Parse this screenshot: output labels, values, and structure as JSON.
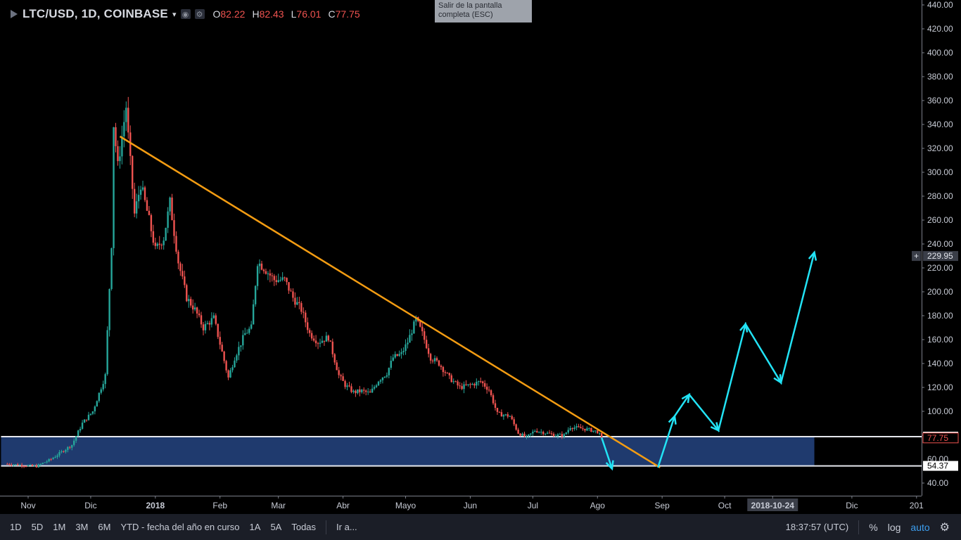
{
  "header": {
    "symbol": "LTC/USD, 1D, COINBASE",
    "ohlc": [
      {
        "key": "O",
        "value": "82.22"
      },
      {
        "key": "H",
        "value": "82.43"
      },
      {
        "key": "L",
        "value": "76.01"
      },
      {
        "key": "C",
        "value": "77.75"
      }
    ]
  },
  "tooltip": {
    "line1": "Salir de la pantalla",
    "line2": "completa (ESC)"
  },
  "bottom_bar": {
    "ranges": [
      "1D",
      "5D",
      "1M",
      "3M",
      "6M",
      "YTD - fecha del año en curso",
      "1A",
      "5A",
      "Todas",
      "Ir a..."
    ],
    "clock": "18:37:57 (UTC)",
    "percent_label": "%",
    "log_label": "log",
    "auto_label": "auto"
  },
  "colors": {
    "background": "#000000",
    "candle_up": "#26a69a",
    "candle_down": "#ef5350",
    "trendline": "#f39c12",
    "zone_fill": "#1f3a6e",
    "arrow": "#22e3f5"
  },
  "chart_data": {
    "type": "candlestick",
    "symbol": "LTC/USD",
    "interval": "1D",
    "exchange": "COINBASE",
    "ylim": [
      33,
      445
    ],
    "y_ticks": [
      40,
      60,
      80,
      100,
      120,
      140,
      160,
      180,
      200,
      220,
      240,
      260,
      280,
      300,
      320,
      340,
      360,
      380,
      400,
      420,
      440
    ],
    "x_ticks": [
      "Nov",
      "Dic",
      "2018",
      "Feb",
      "Mar",
      "Abr",
      "Mayo",
      "Jun",
      "Jul",
      "Ago",
      "Sep",
      "Oct",
      "2018-10-24",
      "Dic",
      "201"
    ],
    "highlighted_x_label": "2018-10-24",
    "price_labels": [
      {
        "text": "229.95",
        "value": 229.95,
        "style": "crosshair"
      },
      {
        "text": "78.81",
        "value": 78.81,
        "style": "line"
      },
      {
        "text": "77.75",
        "value": 77.75,
        "style": "last"
      },
      {
        "text": "60.00",
        "value": 60,
        "style": "tick"
      },
      {
        "text": "54.37",
        "value": 54.37,
        "style": "line"
      }
    ],
    "close_path": [
      [
        "2017-10-22",
        56
      ],
      [
        "2017-11-05",
        54
      ],
      [
        "2017-11-12",
        60
      ],
      [
        "2017-11-22",
        72
      ],
      [
        "2017-11-27",
        90
      ],
      [
        "2017-12-02",
        100
      ],
      [
        "2017-12-08",
        130
      ],
      [
        "2017-12-11",
        240
      ],
      [
        "2017-12-12",
        340
      ],
      [
        "2017-12-14",
        305
      ],
      [
        "2017-12-18",
        355
      ],
      [
        "2017-12-19",
        330
      ],
      [
        "2017-12-22",
        265
      ],
      [
        "2017-12-25",
        290
      ],
      [
        "2017-12-29",
        260
      ],
      [
        "2018-01-01",
        235
      ],
      [
        "2018-01-05",
        245
      ],
      [
        "2018-01-08",
        275
      ],
      [
        "2018-01-12",
        225
      ],
      [
        "2018-01-16",
        195
      ],
      [
        "2018-01-20",
        185
      ],
      [
        "2018-01-24",
        170
      ],
      [
        "2018-01-29",
        178
      ],
      [
        "2018-02-05",
        128
      ],
      [
        "2018-02-08",
        145
      ],
      [
        "2018-02-13",
        165
      ],
      [
        "2018-02-16",
        170
      ],
      [
        "2018-02-19",
        225
      ],
      [
        "2018-02-22",
        220
      ],
      [
        "2018-02-27",
        210
      ],
      [
        "2018-03-04",
        210
      ],
      [
        "2018-03-08",
        195
      ],
      [
        "2018-03-12",
        185
      ],
      [
        "2018-03-16",
        165
      ],
      [
        "2018-03-20",
        158
      ],
      [
        "2018-03-25",
        162
      ],
      [
        "2018-03-30",
        130
      ],
      [
        "2018-04-02",
        122
      ],
      [
        "2018-04-06",
        116
      ],
      [
        "2018-04-10",
        117
      ],
      [
        "2018-04-14",
        115
      ],
      [
        "2018-04-18",
        126
      ],
      [
        "2018-04-22",
        132
      ],
      [
        "2018-04-25",
        145
      ],
      [
        "2018-04-29",
        148
      ],
      [
        "2018-05-02",
        158
      ],
      [
        "2018-05-06",
        177
      ],
      [
        "2018-05-09",
        165
      ],
      [
        "2018-05-13",
        145
      ],
      [
        "2018-05-17",
        140
      ],
      [
        "2018-05-22",
        128
      ],
      [
        "2018-05-27",
        120
      ],
      [
        "2018-06-01",
        122
      ],
      [
        "2018-06-06",
        125
      ],
      [
        "2018-06-10",
        118
      ],
      [
        "2018-06-14",
        98
      ],
      [
        "2018-06-20",
        96
      ],
      [
        "2018-06-24",
        82
      ],
      [
        "2018-06-28",
        78
      ],
      [
        "2018-07-02",
        84
      ],
      [
        "2018-07-07",
        82
      ],
      [
        "2018-07-12",
        80
      ],
      [
        "2018-07-16",
        80
      ],
      [
        "2018-07-19",
        87
      ],
      [
        "2018-07-23",
        86
      ],
      [
        "2018-07-27",
        85
      ],
      [
        "2018-08-01",
        83
      ],
      [
        "2018-08-03",
        77.75
      ]
    ],
    "support_zone": {
      "low": 54.37,
      "high": 78.81,
      "from": "2017-10-19",
      "to": "2018-11-13"
    },
    "trendline": {
      "from": [
        "2017-12-15",
        330
      ],
      "to": [
        "2018-08-31",
        53
      ]
    },
    "projection_arrows": [
      [
        [
          "2018-08-03",
          78
        ],
        [
          "2018-08-08",
          52
        ]
      ],
      [
        [
          "2018-08-30",
          53
        ],
        [
          "2018-09-07",
          96
        ],
        [
          "2018-09-14",
          114
        ],
        [
          "2018-09-28",
          84
        ],
        [
          "2018-10-11",
          173
        ],
        [
          "2018-10-28",
          124
        ],
        [
          "2018-11-13",
          233
        ]
      ]
    ]
  }
}
